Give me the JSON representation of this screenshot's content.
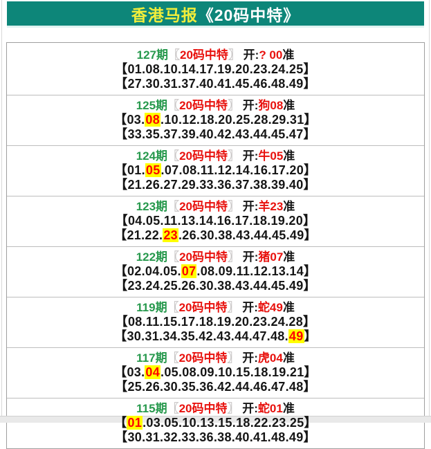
{
  "header": {
    "title_part1": "香港马报",
    "title_part2": "《20码中特》"
  },
  "glyphs": {
    "tag_bracket_open": "〖",
    "tag_bracket_close": "〗",
    "num_bracket_open": "【",
    "num_bracket_close": "】",
    "separator": "."
  },
  "labels": {
    "open_prefix": "开:",
    "suffix": "准"
  },
  "colors": {
    "header_bg": "#0d8679",
    "header_title_yellow": "#f2ee3b",
    "period_green": "#27994d",
    "accent_red": "#e8110d",
    "highlight_bg": "#ffff00",
    "highlight_text": "#fe0000"
  },
  "sections": [
    {
      "period": "127期",
      "tag": "20码中特",
      "result": "? 00",
      "rows": [
        {
          "numbers": [
            "01",
            "08",
            "10",
            "14",
            "17",
            "19",
            "20",
            "23",
            "24",
            "25"
          ],
          "highlight_index": -1
        },
        {
          "numbers": [
            "27",
            "30",
            "31",
            "37",
            "40",
            "41",
            "45",
            "46",
            "48",
            "49"
          ],
          "highlight_index": -1
        }
      ]
    },
    {
      "period": "125期",
      "tag": "20码中特",
      "result": "狗08",
      "rows": [
        {
          "numbers": [
            "03",
            "08",
            "10",
            "12",
            "18",
            "20",
            "25",
            "28",
            "29",
            "31"
          ],
          "highlight_index": 1
        },
        {
          "numbers": [
            "33",
            "35",
            "37",
            "39",
            "40",
            "42",
            "43",
            "44",
            "45",
            "47"
          ],
          "highlight_index": -1
        }
      ]
    },
    {
      "period": "124期",
      "tag": "20码中特",
      "result": "牛05",
      "rows": [
        {
          "numbers": [
            "01",
            "05",
            "07",
            "08",
            "11",
            "12",
            "14",
            "16",
            "17",
            "20"
          ],
          "highlight_index": 1
        },
        {
          "numbers": [
            "21",
            "26",
            "27",
            "29",
            "33",
            "36",
            "37",
            "38",
            "39",
            "40"
          ],
          "highlight_index": -1
        }
      ]
    },
    {
      "period": "123期",
      "tag": "20码中特",
      "result": "羊23",
      "rows": [
        {
          "numbers": [
            "04",
            "05",
            "11",
            "13",
            "14",
            "16",
            "17",
            "18",
            "19",
            "20"
          ],
          "highlight_index": -1
        },
        {
          "numbers": [
            "21",
            "22",
            "23",
            "26",
            "30",
            "38",
            "43",
            "44",
            "45",
            "49"
          ],
          "highlight_index": 2
        }
      ]
    },
    {
      "period": "122期",
      "tag": "20码中特",
      "result": "猪07",
      "rows": [
        {
          "numbers": [
            "02",
            "04",
            "05",
            "07",
            "08",
            "09",
            "11",
            "12",
            "13",
            "14"
          ],
          "highlight_index": 3
        },
        {
          "numbers": [
            "23",
            "24",
            "25",
            "26",
            "30",
            "38",
            "43",
            "44",
            "45",
            "49"
          ],
          "highlight_index": -1
        }
      ]
    },
    {
      "period": "119期",
      "tag": "20码中特",
      "result": "蛇49",
      "rows": [
        {
          "numbers": [
            "08",
            "11",
            "15",
            "17",
            "18",
            "19",
            "20",
            "23",
            "24",
            "28"
          ],
          "highlight_index": -1
        },
        {
          "numbers": [
            "30",
            "31",
            "34",
            "35",
            "42",
            "43",
            "44",
            "47",
            "48",
            "49"
          ],
          "highlight_index": 9
        }
      ]
    },
    {
      "period": "117期",
      "tag": "20码中特",
      "result": "虎04",
      "rows": [
        {
          "numbers": [
            "03",
            "04",
            "05",
            "08",
            "09",
            "10",
            "15",
            "18",
            "19",
            "21"
          ],
          "highlight_index": 1
        },
        {
          "numbers": [
            "25",
            "26",
            "30",
            "35",
            "36",
            "42",
            "44",
            "46",
            "47",
            "48"
          ],
          "highlight_index": -1
        }
      ]
    },
    {
      "period": "115期",
      "tag": "20码中特",
      "result": "蛇01",
      "rows": [
        {
          "numbers": [
            "01",
            "03",
            "05",
            "10",
            "13",
            "15",
            "18",
            "22",
            "23",
            "25"
          ],
          "highlight_index": 0
        },
        {
          "numbers": [
            "30",
            "31",
            "32",
            "33",
            "36",
            "38",
            "40",
            "41",
            "48",
            "49"
          ],
          "highlight_index": -1
        }
      ]
    }
  ]
}
